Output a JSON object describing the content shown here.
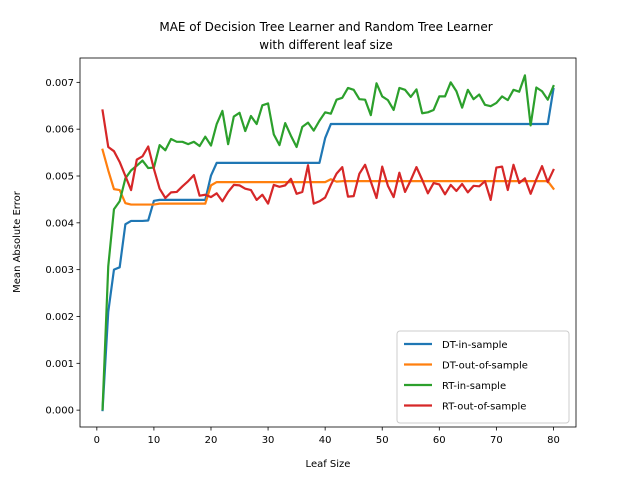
{
  "chart_data": {
    "type": "line",
    "title_lines": [
      "MAE of Decision Tree Learner and Random Tree Learner",
      "with different leaf size"
    ],
    "xlabel": "Leaf Size",
    "ylabel": "Mean Absolute Error",
    "xlim": [
      -2.95,
      83.95
    ],
    "ylim": [
      -0.00036,
      0.00752
    ],
    "xticks": [
      0,
      10,
      20,
      30,
      40,
      50,
      60,
      70,
      80
    ],
    "yticks": [
      0.0,
      0.001,
      0.002,
      0.003,
      0.004,
      0.005,
      0.006,
      0.007
    ],
    "ytick_labels": [
      "0.000",
      "0.001",
      "0.002",
      "0.003",
      "0.004",
      "0.005",
      "0.006",
      "0.007"
    ],
    "grid": false,
    "legend_position": "lower-right",
    "x": [
      1,
      2,
      3,
      4,
      5,
      6,
      7,
      8,
      9,
      10,
      11,
      12,
      13,
      14,
      15,
      16,
      17,
      18,
      19,
      20,
      21,
      22,
      23,
      24,
      25,
      26,
      27,
      28,
      29,
      30,
      31,
      32,
      33,
      34,
      35,
      36,
      37,
      38,
      39,
      40,
      41,
      42,
      43,
      44,
      45,
      46,
      47,
      48,
      49,
      50,
      51,
      52,
      53,
      54,
      55,
      56,
      57,
      58,
      59,
      60,
      61,
      62,
      63,
      64,
      65,
      66,
      67,
      68,
      69,
      70,
      71,
      72,
      73,
      74,
      75,
      76,
      77,
      78,
      79,
      80
    ],
    "series": [
      {
        "name": "DT-in-sample",
        "color": "#1f77b4",
        "values": [
          0.0,
          0.0021,
          0.003,
          0.00305,
          0.00397,
          0.00404,
          0.00404,
          0.00404,
          0.00405,
          0.00447,
          0.00449,
          0.00449,
          0.00449,
          0.00449,
          0.00449,
          0.00449,
          0.00449,
          0.00449,
          0.00449,
          0.00501,
          0.00528,
          0.00528,
          0.00528,
          0.00528,
          0.00528,
          0.00528,
          0.00528,
          0.00528,
          0.00528,
          0.00528,
          0.00528,
          0.00528,
          0.00528,
          0.00528,
          0.00528,
          0.00528,
          0.00528,
          0.00528,
          0.00528,
          0.00581,
          0.00611,
          0.00611,
          0.00611,
          0.00611,
          0.00611,
          0.00611,
          0.00611,
          0.00611,
          0.00611,
          0.00611,
          0.00611,
          0.00611,
          0.00611,
          0.00611,
          0.00611,
          0.00611,
          0.00611,
          0.00611,
          0.00611,
          0.00611,
          0.00611,
          0.00611,
          0.00611,
          0.00611,
          0.00611,
          0.00611,
          0.00611,
          0.00611,
          0.00611,
          0.00611,
          0.00611,
          0.00611,
          0.00611,
          0.00611,
          0.00611,
          0.00611,
          0.00611,
          0.00611,
          0.00611,
          0.00686
        ]
      },
      {
        "name": "DT-out-of-sample",
        "color": "#ff7f0e",
        "values": [
          0.00556,
          0.00512,
          0.00472,
          0.0047,
          0.00442,
          0.00439,
          0.00439,
          0.00439,
          0.00439,
          0.00439,
          0.00441,
          0.00441,
          0.00441,
          0.00441,
          0.00441,
          0.00441,
          0.00441,
          0.00441,
          0.00441,
          0.0048,
          0.00487,
          0.00487,
          0.00487,
          0.00487,
          0.00487,
          0.00487,
          0.00487,
          0.00487,
          0.00487,
          0.00487,
          0.00487,
          0.00487,
          0.00487,
          0.00487,
          0.00487,
          0.00487,
          0.00487,
          0.00487,
          0.00487,
          0.00487,
          0.00493,
          0.00488,
          0.00489,
          0.00489,
          0.00489,
          0.00489,
          0.00489,
          0.00489,
          0.00489,
          0.00489,
          0.00489,
          0.00489,
          0.00489,
          0.00489,
          0.00489,
          0.00489,
          0.00489,
          0.00489,
          0.00489,
          0.00489,
          0.00489,
          0.00489,
          0.00489,
          0.00489,
          0.00489,
          0.00489,
          0.00489,
          0.00489,
          0.00489,
          0.00489,
          0.00489,
          0.00489,
          0.00489,
          0.00489,
          0.00489,
          0.00489,
          0.00489,
          0.00489,
          0.00489,
          0.00473
        ]
      },
      {
        "name": "RT-in-sample",
        "color": "#2ca02c",
        "values": [
          2e-05,
          0.00307,
          0.00429,
          0.00446,
          0.00495,
          0.00512,
          0.00522,
          0.00533,
          0.00517,
          0.00518,
          0.00566,
          0.00555,
          0.00579,
          0.00573,
          0.00573,
          0.00568,
          0.00573,
          0.00564,
          0.00584,
          0.00565,
          0.00611,
          0.00639,
          0.00568,
          0.00627,
          0.00635,
          0.00596,
          0.00628,
          0.00611,
          0.00651,
          0.00655,
          0.00589,
          0.00566,
          0.00613,
          0.00586,
          0.00562,
          0.00605,
          0.00614,
          0.00597,
          0.00618,
          0.00636,
          0.00633,
          0.00663,
          0.00667,
          0.00688,
          0.00684,
          0.00664,
          0.00663,
          0.0063,
          0.00698,
          0.0067,
          0.00662,
          0.00641,
          0.00688,
          0.00684,
          0.00669,
          0.00685,
          0.00634,
          0.00636,
          0.00641,
          0.0067,
          0.0067,
          0.007,
          0.00681,
          0.00646,
          0.00684,
          0.00664,
          0.00674,
          0.00652,
          0.00649,
          0.00656,
          0.0067,
          0.00662,
          0.00684,
          0.0068,
          0.00715,
          0.00608,
          0.00689,
          0.00681,
          0.00663,
          0.00692
        ]
      },
      {
        "name": "RT-out-of-sample",
        "color": "#d62728",
        "values": [
          0.0064,
          0.00562,
          0.00553,
          0.0053,
          0.005,
          0.0047,
          0.00535,
          0.00542,
          0.00563,
          0.00515,
          0.00473,
          0.00453,
          0.00465,
          0.00466,
          0.00478,
          0.00489,
          0.00502,
          0.00458,
          0.0046,
          0.00455,
          0.00463,
          0.00446,
          0.00466,
          0.00481,
          0.0048,
          0.00473,
          0.0047,
          0.00449,
          0.0046,
          0.00441,
          0.00481,
          0.00477,
          0.0048,
          0.00494,
          0.00462,
          0.00466,
          0.00523,
          0.00441,
          0.00446,
          0.00454,
          0.00481,
          0.00505,
          0.00519,
          0.00456,
          0.00457,
          0.00505,
          0.00524,
          0.00488,
          0.00453,
          0.0052,
          0.00479,
          0.00455,
          0.00507,
          0.00466,
          0.00491,
          0.00519,
          0.00492,
          0.00463,
          0.00485,
          0.00482,
          0.00461,
          0.00481,
          0.00468,
          0.00483,
          0.00465,
          0.00479,
          0.00478,
          0.00489,
          0.00449,
          0.00518,
          0.0052,
          0.0047,
          0.00524,
          0.00485,
          0.00495,
          0.00462,
          0.00493,
          0.00521,
          0.00487,
          0.00513
        ]
      }
    ]
  }
}
